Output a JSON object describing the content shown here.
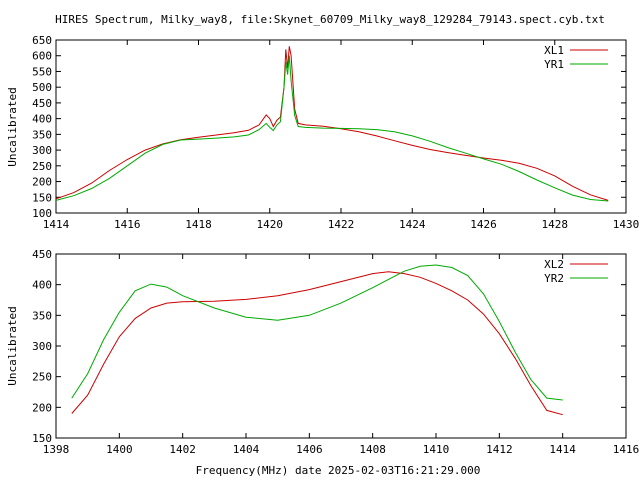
{
  "title": "HIRES Spectrum, Milky_way8, file:Skynet_60709_Milky_way8_129284_79143.spect.cyb.txt",
  "xlabel": "Frequency(MHz) date 2025-02-03T16:21:29.000",
  "colors": {
    "red": "#cc0000",
    "green": "#00aa00"
  },
  "chart_data": [
    {
      "type": "line",
      "ylabel": "Uncalibrated",
      "xlim": [
        1414,
        1430
      ],
      "ylim": [
        100,
        650
      ],
      "xticks": [
        1414,
        1416,
        1418,
        1420,
        1422,
        1424,
        1426,
        1428,
        1430
      ],
      "yticks": [
        100,
        150,
        200,
        250,
        300,
        350,
        400,
        450,
        500,
        550,
        600,
        650
      ],
      "legend": "top-right",
      "grid": false,
      "series": [
        {
          "name": "XL1",
          "color": "#cc0000",
          "points": [
            [
              1414.0,
              145
            ],
            [
              1414.5,
              165
            ],
            [
              1415.0,
              195
            ],
            [
              1415.5,
              235
            ],
            [
              1416.0,
              270
            ],
            [
              1416.5,
              300
            ],
            [
              1417.0,
              320
            ],
            [
              1417.5,
              333
            ],
            [
              1418.0,
              341
            ],
            [
              1418.5,
              348
            ],
            [
              1419.0,
              355
            ],
            [
              1419.4,
              363
            ],
            [
              1419.7,
              380
            ],
            [
              1419.9,
              412
            ],
            [
              1420.0,
              400
            ],
            [
              1420.1,
              375
            ],
            [
              1420.2,
              395
            ],
            [
              1420.3,
              405
            ],
            [
              1420.4,
              500
            ],
            [
              1420.45,
              620
            ],
            [
              1420.5,
              560
            ],
            [
              1420.55,
              630
            ],
            [
              1420.6,
              600
            ],
            [
              1420.7,
              430
            ],
            [
              1420.8,
              385
            ],
            [
              1421.0,
              380
            ],
            [
              1421.5,
              376
            ],
            [
              1422.0,
              368
            ],
            [
              1422.5,
              358
            ],
            [
              1423.0,
              345
            ],
            [
              1423.5,
              330
            ],
            [
              1424.0,
              315
            ],
            [
              1424.5,
              302
            ],
            [
              1425.0,
              292
            ],
            [
              1425.5,
              283
            ],
            [
              1426.0,
              275
            ],
            [
              1426.5,
              268
            ],
            [
              1427.0,
              258
            ],
            [
              1427.5,
              242
            ],
            [
              1428.0,
              218
            ],
            [
              1428.5,
              185
            ],
            [
              1429.0,
              158
            ],
            [
              1429.5,
              140
            ]
          ]
        },
        {
          "name": "YR1",
          "color": "#00aa00",
          "points": [
            [
              1414.0,
              140
            ],
            [
              1414.5,
              155
            ],
            [
              1415.0,
              178
            ],
            [
              1415.5,
              210
            ],
            [
              1416.0,
              250
            ],
            [
              1416.5,
              290
            ],
            [
              1417.0,
              318
            ],
            [
              1417.5,
              332
            ],
            [
              1418.0,
              335
            ],
            [
              1418.5,
              338
            ],
            [
              1419.0,
              342
            ],
            [
              1419.4,
              348
            ],
            [
              1419.7,
              365
            ],
            [
              1419.9,
              385
            ],
            [
              1420.0,
              372
            ],
            [
              1420.1,
              362
            ],
            [
              1420.2,
              380
            ],
            [
              1420.3,
              390
            ],
            [
              1420.4,
              500
            ],
            [
              1420.45,
              580
            ],
            [
              1420.5,
              540
            ],
            [
              1420.55,
              600
            ],
            [
              1420.6,
              520
            ],
            [
              1420.7,
              410
            ],
            [
              1420.8,
              375
            ],
            [
              1421.0,
              372
            ],
            [
              1421.5,
              370
            ],
            [
              1422.0,
              369
            ],
            [
              1422.5,
              368
            ],
            [
              1423.0,
              365
            ],
            [
              1423.5,
              358
            ],
            [
              1424.0,
              345
            ],
            [
              1424.5,
              328
            ],
            [
              1425.0,
              308
            ],
            [
              1425.5,
              290
            ],
            [
              1426.0,
              272
            ],
            [
              1426.5,
              255
            ],
            [
              1427.0,
              232
            ],
            [
              1427.5,
              205
            ],
            [
              1428.0,
              180
            ],
            [
              1428.5,
              157
            ],
            [
              1429.0,
              143
            ],
            [
              1429.5,
              138
            ]
          ]
        }
      ]
    },
    {
      "type": "line",
      "ylabel": "Uncalibrated",
      "xlim": [
        1398,
        1416
      ],
      "ylim": [
        150,
        450
      ],
      "xticks": [
        1398,
        1400,
        1402,
        1404,
        1406,
        1408,
        1410,
        1412,
        1414,
        1416
      ],
      "yticks": [
        150,
        200,
        250,
        300,
        350,
        400,
        450
      ],
      "legend": "top-right",
      "grid": false,
      "series": [
        {
          "name": "XL2",
          "color": "#cc0000",
          "points": [
            [
              1398.5,
              190
            ],
            [
              1399.0,
              220
            ],
            [
              1399.5,
              270
            ],
            [
              1400.0,
              315
            ],
            [
              1400.5,
              345
            ],
            [
              1401.0,
              362
            ],
            [
              1401.5,
              370
            ],
            [
              1402.0,
              372
            ],
            [
              1403.0,
              373
            ],
            [
              1404.0,
              376
            ],
            [
              1405.0,
              382
            ],
            [
              1406.0,
              392
            ],
            [
              1407.0,
              405
            ],
            [
              1408.0,
              418
            ],
            [
              1408.5,
              421
            ],
            [
              1409.0,
              418
            ],
            [
              1409.5,
              412
            ],
            [
              1410.0,
              402
            ],
            [
              1410.5,
              390
            ],
            [
              1411.0,
              375
            ],
            [
              1411.5,
              352
            ],
            [
              1412.0,
              320
            ],
            [
              1412.5,
              280
            ],
            [
              1413.0,
              235
            ],
            [
              1413.5,
              195
            ],
            [
              1414.0,
              188
            ]
          ]
        },
        {
          "name": "YR2",
          "color": "#00aa00",
          "points": [
            [
              1398.5,
              215
            ],
            [
              1399.0,
              255
            ],
            [
              1399.5,
              310
            ],
            [
              1400.0,
              355
            ],
            [
              1400.5,
              390
            ],
            [
              1401.0,
              401
            ],
            [
              1401.5,
              396
            ],
            [
              1402.0,
              382
            ],
            [
              1403.0,
              362
            ],
            [
              1404.0,
              347
            ],
            [
              1405.0,
              342
            ],
            [
              1406.0,
              350
            ],
            [
              1407.0,
              370
            ],
            [
              1408.0,
              395
            ],
            [
              1409.0,
              422
            ],
            [
              1409.5,
              430
            ],
            [
              1410.0,
              432
            ],
            [
              1410.5,
              428
            ],
            [
              1411.0,
              415
            ],
            [
              1411.5,
              385
            ],
            [
              1412.0,
              340
            ],
            [
              1412.5,
              290
            ],
            [
              1413.0,
              245
            ],
            [
              1413.5,
              215
            ],
            [
              1414.0,
              212
            ]
          ]
        }
      ]
    }
  ]
}
